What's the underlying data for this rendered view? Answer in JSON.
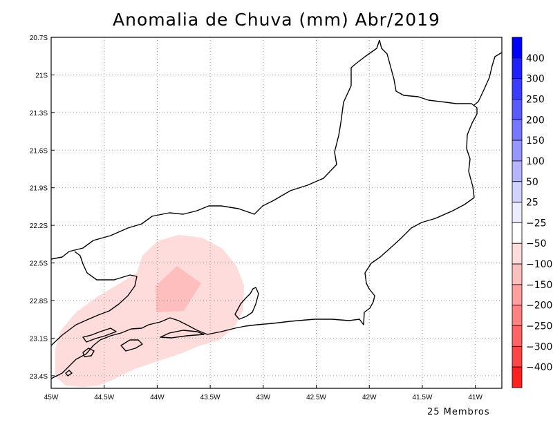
{
  "title": "Anomalia de Chuva (mm) Abr/2019",
  "footer": "25 Membros",
  "colors": {
    "frame": "#000000",
    "grid": "#9a9a9a",
    "coast": "#000000",
    "anom_minus25": "#ffdcdc",
    "anom_minus50": "#ffbebe"
  },
  "map": {
    "lon_range": [
      -45.0,
      -40.75
    ],
    "lat_range": [
      -23.5,
      -20.7
    ],
    "lon_ticks": [
      {
        "value": -45.0,
        "label": "45W"
      },
      {
        "value": -44.5,
        "label": "44.5W"
      },
      {
        "value": -44.0,
        "label": "44W"
      },
      {
        "value": -43.5,
        "label": "43.5W"
      },
      {
        "value": -43.0,
        "label": "43W"
      },
      {
        "value": -42.5,
        "label": "42.5W"
      },
      {
        "value": -42.0,
        "label": "42W"
      },
      {
        "value": -41.5,
        "label": "41.5W"
      },
      {
        "value": -41.0,
        "label": "41W"
      }
    ],
    "lat_ticks": [
      {
        "value": -20.7,
        "label": "20.7S"
      },
      {
        "value": -21.0,
        "label": "21S"
      },
      {
        "value": -21.3,
        "label": "21.3S"
      },
      {
        "value": -21.6,
        "label": "21.6S"
      },
      {
        "value": -21.9,
        "label": "21.9S"
      },
      {
        "value": -22.2,
        "label": "22.2S"
      },
      {
        "value": -22.5,
        "label": "22.5S"
      },
      {
        "value": -22.8,
        "label": "22.8S"
      },
      {
        "value": -23.1,
        "label": "23.1S"
      },
      {
        "value": -23.4,
        "label": "23.4S"
      }
    ],
    "grid": true
  },
  "colorbar": {
    "labels": [
      "400",
      "300",
      "250",
      "200",
      "150",
      "100",
      "50",
      "25",
      "−25",
      "−50",
      "−100",
      "−150",
      "−200",
      "−250",
      "−300",
      "−400"
    ],
    "colors": [
      "#0000ff",
      "#2020ff",
      "#3c3cff",
      "#5a5aff",
      "#7878ff",
      "#9696ff",
      "#b4b4ff",
      "#d2d2ff",
      "#ececff",
      "#ffffff",
      "#ffdcdc",
      "#ffbebe",
      "#ffa0a0",
      "#ff8282",
      "#ff6464",
      "#ff4646",
      "#ff2020"
    ]
  }
}
